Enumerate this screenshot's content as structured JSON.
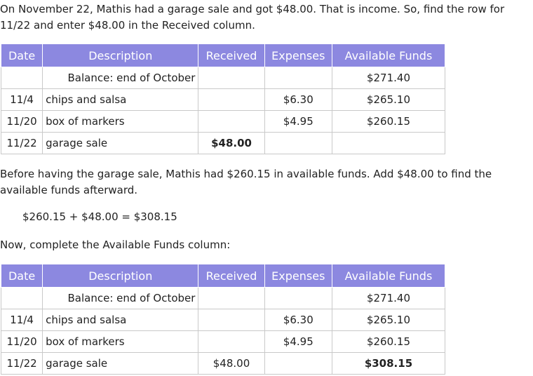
{
  "intro": "On November 22, Mathis had a garage sale and got $48.00. That is income. So, find the row for 11/22 and enter $48.00 in the Received column.",
  "headers": {
    "date": "Date",
    "description": "Description",
    "received": "Received",
    "expenses": "Expenses",
    "available": "Available Funds"
  },
  "table1": {
    "rows": [
      {
        "date": "",
        "description": "Balance: end of October",
        "received": "",
        "expenses": "",
        "available": "$271.40"
      },
      {
        "date": "11/4",
        "description": "chips and salsa",
        "received": "",
        "expenses": "$6.30",
        "available": "$265.10"
      },
      {
        "date": "11/20",
        "description": "box of markers",
        "received": "",
        "expenses": "$4.95",
        "available": "$260.15"
      },
      {
        "date": "11/22",
        "description": "garage sale",
        "received": "$48.00",
        "expenses": "",
        "available": ""
      }
    ]
  },
  "middle_text": "Before having the garage sale, Mathis had $260.15 in available funds. Add $48.00 to find the available funds afterward.",
  "equation": "$260.15 + $48.00 = $308.15",
  "complete_text": "Now, complete the Available Funds column:",
  "table2": {
    "rows": [
      {
        "date": "",
        "description": "Balance: end of October",
        "received": "",
        "expenses": "",
        "available": "$271.40"
      },
      {
        "date": "11/4",
        "description": "chips and salsa",
        "received": "",
        "expenses": "$6.30",
        "available": "$265.10"
      },
      {
        "date": "11/20",
        "description": "box of markers",
        "received": "",
        "expenses": "$4.95",
        "available": "$260.15"
      },
      {
        "date": "11/22",
        "description": "garage sale",
        "received": "$48.00",
        "expenses": "",
        "available": "$308.15"
      }
    ]
  },
  "colors": {
    "header_bg": "#8c88e0",
    "border": "#c9c9c9"
  }
}
